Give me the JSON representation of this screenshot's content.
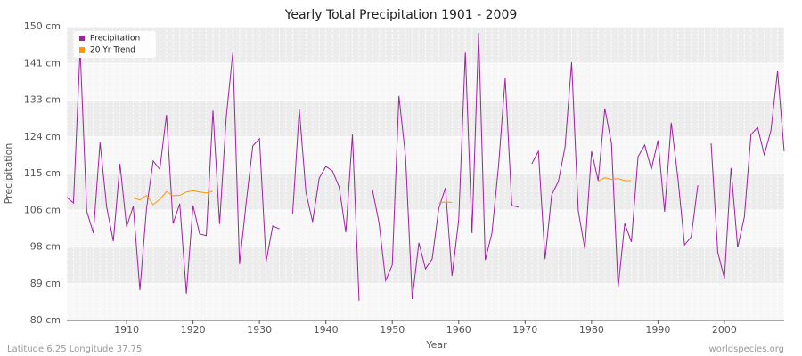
{
  "chart_data": {
    "type": "line",
    "title": "Yearly Total Precipitation 1901 - 2009",
    "x_label": "Year",
    "y_label": "Precipitation",
    "footer_left": "Latitude 6.25 Longitude 37.75",
    "footer_right": "worldspecies.org",
    "legend": "upper left",
    "grid": true,
    "xlim": [
      1901,
      2009
    ],
    "xticks": [
      1910,
      1920,
      1930,
      1940,
      1950,
      1960,
      1970,
      1980,
      1990,
      2000
    ],
    "ylim": [
      80,
      150
    ],
    "yticks": [
      {
        "value": 80,
        "label": "80 cm"
      },
      {
        "value": 88.75,
        "label": "89 cm"
      },
      {
        "value": 97.5,
        "label": "98 cm"
      },
      {
        "value": 106.25,
        "label": "106 cm"
      },
      {
        "value": 115,
        "label": "115 cm"
      },
      {
        "value": 123.75,
        "label": "124 cm"
      },
      {
        "value": 132.5,
        "label": "133 cm"
      },
      {
        "value": 141.25,
        "label": "141 cm"
      },
      {
        "value": 150,
        "label": "150 cm"
      }
    ],
    "x": [
      1901,
      1902,
      1903,
      1904,
      1905,
      1906,
      1907,
      1908,
      1909,
      1910,
      1911,
      1912,
      1913,
      1914,
      1915,
      1916,
      1917,
      1918,
      1919,
      1920,
      1921,
      1922,
      1923,
      1924,
      1925,
      1926,
      1927,
      1928,
      1929,
      1930,
      1931,
      1932,
      1933,
      1934,
      1935,
      1936,
      1937,
      1938,
      1939,
      1940,
      1941,
      1942,
      1943,
      1944,
      1945,
      1946,
      1947,
      1948,
      1949,
      1950,
      1951,
      1952,
      1953,
      1954,
      1955,
      1956,
      1957,
      1958,
      1959,
      1960,
      1961,
      1962,
      1963,
      1964,
      1965,
      1966,
      1967,
      1968,
      1969,
      1970,
      1971,
      1972,
      1973,
      1974,
      1975,
      1976,
      1977,
      1978,
      1979,
      1980,
      1981,
      1982,
      1983,
      1984,
      1985,
      1986,
      1987,
      1988,
      1989,
      1990,
      1991,
      1992,
      1993,
      1994,
      1995,
      1996,
      1997,
      1998,
      1999,
      2000,
      2001,
      2002,
      2003,
      2004,
      2005,
      2006,
      2007,
      2008,
      2009
    ],
    "series": [
      {
        "name": "Precipitation",
        "color": "#a020a0",
        "values": [
          109.3,
          108,
          144.7,
          106,
          100.8,
          122.4,
          107,
          98.9,
          117.3,
          102.3,
          107.2,
          87.2,
          106.7,
          118,
          116,
          129,
          103.1,
          107.8,
          86.4,
          107.4,
          100.6,
          100.2,
          130,
          103,
          128.4,
          144,
          93.4,
          108,
          121.6,
          123.3,
          94,
          102.5,
          101.8,
          null,
          105.5,
          130.3,
          110.5,
          103.5,
          113.9,
          116.7,
          115.6,
          111.8,
          101,
          124.3,
          84.7,
          null,
          111.2,
          103.3,
          89.5,
          93.2,
          133.5,
          119,
          85.1,
          98.5,
          92.3,
          94.6,
          106.7,
          111.6,
          90.6,
          104,
          144,
          100.8,
          148.5,
          94.4,
          100.8,
          116.9,
          137.7,
          107.4,
          107,
          null,
          117.3,
          120.3,
          94.6,
          109.9,
          113.1,
          121.2,
          141.5,
          106.1,
          97,
          120.3,
          113.3,
          130.5,
          122.2,
          87.8,
          103.1,
          98.7,
          119,
          121.8,
          116,
          122.9,
          105.9,
          127.1,
          113.9,
          98,
          99.9,
          112.2,
          null,
          122.2,
          96.3,
          90,
          116.3,
          97.4,
          104.6,
          124.3,
          126,
          119.5,
          125.2,
          139.4,
          120.3
        ]
      },
      {
        "name": "20 Yr Trend",
        "color": "#ff9900",
        "values": [
          null,
          null,
          null,
          null,
          null,
          null,
          null,
          null,
          null,
          null,
          109.2,
          108.7,
          109.8,
          107.6,
          108.8,
          110.7,
          109.7,
          109.8,
          110.6,
          110.9,
          110.6,
          110.4,
          110.8,
          null,
          null,
          null,
          null,
          null,
          null,
          null,
          null,
          null,
          null,
          null,
          null,
          null,
          null,
          null,
          null,
          null,
          null,
          null,
          null,
          null,
          null,
          null,
          null,
          null,
          null,
          null,
          null,
          null,
          null,
          null,
          null,
          null,
          108,
          108.2,
          108.1,
          null,
          null,
          null,
          null,
          null,
          null,
          null,
          null,
          null,
          null,
          null,
          null,
          null,
          null,
          null,
          null,
          null,
          null,
          null,
          null,
          null,
          113.2,
          114,
          113.6,
          113.8,
          113.3,
          113.3,
          null,
          null,
          null,
          null,
          null,
          null,
          null,
          null,
          null,
          null,
          null,
          null,
          null,
          null,
          null,
          null,
          null,
          null,
          null,
          null,
          null,
          null,
          null
        ]
      }
    ]
  }
}
